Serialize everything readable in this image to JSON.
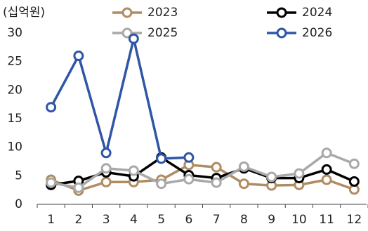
{
  "chart_data": {
    "type": "line",
    "y_label": "(십억원)",
    "categories": [
      1,
      2,
      3,
      4,
      5,
      6,
      7,
      8,
      9,
      10,
      11,
      12
    ],
    "series": [
      {
        "name": "2023",
        "color": "#b08c62",
        "values": [
          4.3,
          2.4,
          3.9,
          3.9,
          4.3,
          6.9,
          6.5,
          3.6,
          3.3,
          3.4,
          4.3,
          2.6
        ]
      },
      {
        "name": "2024",
        "color": "#000000",
        "values": [
          3.4,
          4.1,
          5.6,
          4.9,
          8.2,
          5.1,
          4.6,
          6.3,
          4.6,
          4.6,
          6.1,
          4.0
        ]
      },
      {
        "name": "2025",
        "color": "#a9a9a9",
        "values": [
          3.8,
          2.9,
          6.3,
          5.9,
          3.6,
          4.4,
          3.8,
          6.6,
          4.8,
          5.4,
          9.0,
          7.1
        ]
      },
      {
        "name": "2026",
        "color": "#2f56a6",
        "values": [
          17,
          26,
          9,
          29,
          8,
          8.2,
          null,
          null,
          null,
          null,
          null,
          null
        ]
      }
    ],
    "ylim": [
      0,
      30
    ],
    "yticks": [
      0,
      5,
      10,
      15,
      20,
      25,
      30
    ]
  }
}
